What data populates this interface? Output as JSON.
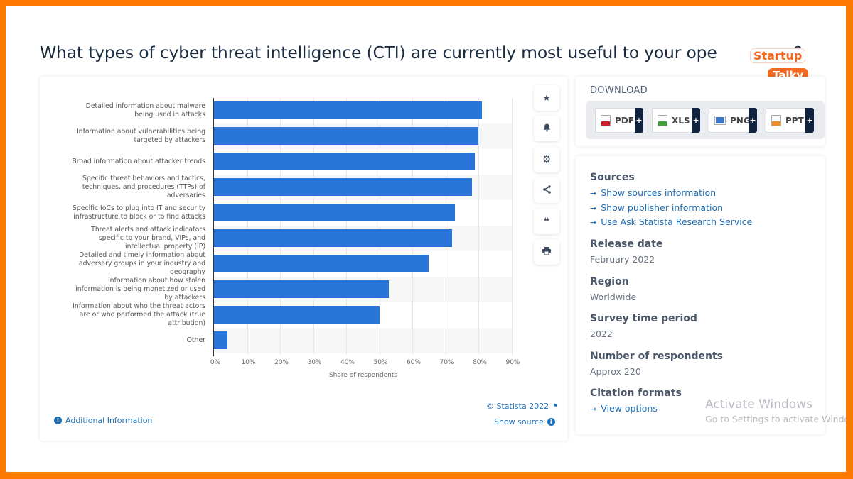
{
  "page": {
    "title": "What types of cyber threat intelligence (CTI) are currently most useful to your operations?",
    "title_visible": "What types of cyber threat intelligence (CTI) are currently most useful to your ope",
    "title_tail": "s?",
    "frame_color": "#ff7a00"
  },
  "logo": {
    "line1": "Startup",
    "line2": "Talky",
    "color": "#f26a21"
  },
  "chart_data": {
    "type": "bar",
    "orientation": "horizontal",
    "title": "What types of cyber threat intelligence (CTI) are currently most useful to your operations?",
    "xlabel": "Share of respondents",
    "ylabel": "",
    "xlim": [
      0,
      90
    ],
    "x_ticks": [
      "0%",
      "10%",
      "20%",
      "30%",
      "40%",
      "50%",
      "60%",
      "70%",
      "80%",
      "90%"
    ],
    "grid": true,
    "bar_color": "#2a75d8",
    "categories": [
      "Detailed information about malware being used in attacks",
      "Information about vulnerabilities being targeted by attackers",
      "Broad information about attacker trends",
      "Specific threat behaviors and tactics, techniques, and procedures (TTPs) of adversaries",
      "Specific IoCs to plug into IT and security infrastructure to block or to find attacks",
      "Threat alerts and attack indicators specific to your brand, VIPs, and intellectual property (IP)",
      "Detailed and timely information about adversary groups in your industry and geography",
      "Information about how stolen information is being monetized or used by attackers",
      "Information about who the threat actors are or who performed the attack (true attribution)",
      "Other"
    ],
    "values": [
      81,
      80,
      79,
      78,
      73,
      72,
      65,
      53,
      50,
      4
    ],
    "unit": "%"
  },
  "chart": {
    "label_lines": [
      [
        "Detailed information about malware",
        "being used in attacks"
      ],
      [
        "Information about vulnerabilities being",
        "targeted by attackers"
      ],
      [
        "Broad information about attacker trends"
      ],
      [
        "Specific threat behaviors and tactics,",
        "techniques, and procedures (TTPs) of",
        "adversaries"
      ],
      [
        "Specific IoCs to plug into IT and security",
        "infrastructure to block or to find attacks"
      ],
      [
        "Threat alerts and attack indicators",
        "specific to your brand, VIPs, and",
        "intellectual property (IP)"
      ],
      [
        "Detailed and timely information about",
        "adversary groups in your industry and",
        "geography"
      ],
      [
        "Information about how stolen",
        "information is being monetized or used",
        "by attackers"
      ],
      [
        "Information about who the threat actors",
        "are or who performed the attack (true",
        "attribution)"
      ],
      [
        "Other"
      ]
    ],
    "copyright": "© Statista 2022",
    "show_source": "Show source",
    "additional_info": "Additional Information"
  },
  "toolbar": {
    "items": [
      {
        "name": "favorite",
        "icon": "★"
      },
      {
        "name": "notification",
        "icon": "🔔"
      },
      {
        "name": "settings",
        "icon": "⚙"
      },
      {
        "name": "share",
        "icon": "<"
      },
      {
        "name": "cite",
        "icon": "❝"
      },
      {
        "name": "print",
        "icon": "⎙"
      }
    ]
  },
  "download": {
    "title": "DOWNLOAD",
    "buttons": [
      {
        "label": "PDF",
        "color": "#d0202a"
      },
      {
        "label": "XLS",
        "color": "#3fa33a"
      },
      {
        "label": "PNG",
        "color": "#3a78c9"
      },
      {
        "label": "PPT",
        "color": "#ee8a2a"
      }
    ],
    "plus": "+"
  },
  "meta": {
    "sources_heading": "Sources",
    "sources_links": [
      "Show sources information",
      "Show publisher information",
      "Use Ask Statista Research Service"
    ],
    "release_heading": "Release date",
    "release_value": "February 2022",
    "region_heading": "Region",
    "region_value": "Worldwide",
    "survey_heading": "Survey time period",
    "survey_value": "2022",
    "respondents_heading": "Number of respondents",
    "respondents_value": "Approx 220",
    "citation_heading": "Citation formats",
    "citation_link": "View options",
    "arrow": "➞"
  },
  "watermark": {
    "line1": "Activate Windows",
    "line2": "Go to Settings to activate Windows."
  }
}
